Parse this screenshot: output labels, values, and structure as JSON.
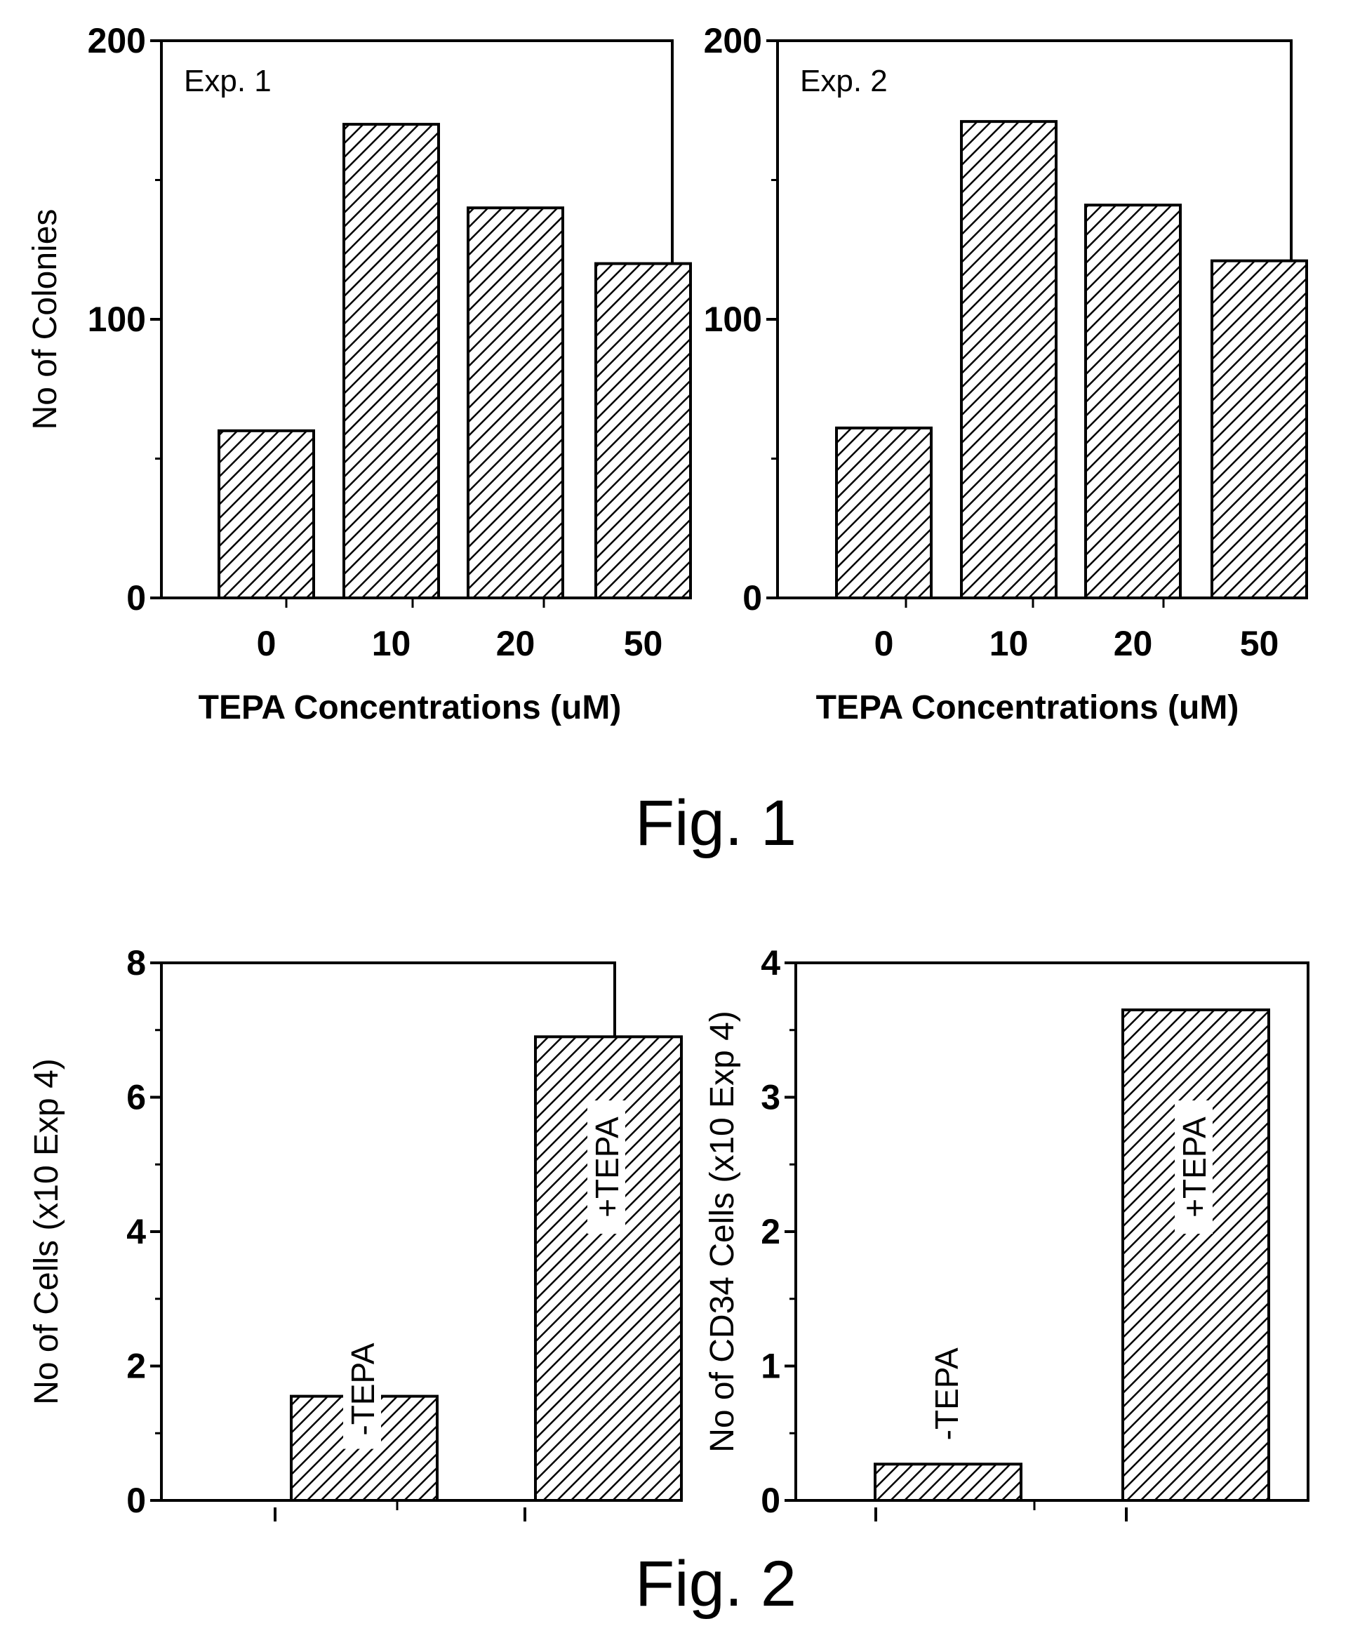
{
  "figures": [
    {
      "caption": "Fig. 1"
    },
    {
      "caption": "Fig. 2"
    }
  ],
  "chart_data": [
    {
      "type": "bar",
      "panel_label": "Exp. 1",
      "categories": [
        "0",
        "10",
        "20",
        "50"
      ],
      "values": [
        60,
        170,
        140,
        120
      ],
      "xlabel": "TEPA Concentrations (uM)",
      "ylabel": "No of Colonies",
      "ylim": [
        0,
        200
      ],
      "yticks": [
        "0",
        "100",
        "200"
      ],
      "bar_fill": "diagonal-hatch",
      "color": "#000000"
    },
    {
      "type": "bar",
      "panel_label": "Exp. 2",
      "categories": [
        "0",
        "10",
        "20",
        "50"
      ],
      "values": [
        61,
        171,
        141,
        121
      ],
      "xlabel": "TEPA Concentrations (uM)",
      "ylabel": "",
      "ylim": [
        0,
        200
      ],
      "yticks": [
        "0",
        "100",
        "200"
      ],
      "bar_fill": "diagonal-hatch",
      "color": "#000000"
    },
    {
      "type": "bar",
      "categories": [
        "-TEPA",
        "+TEPA"
      ],
      "values": [
        1.55,
        6.9
      ],
      "xlabel": "",
      "ylabel": "No of Cells (x10 Exp 4)",
      "ylim": [
        0,
        8
      ],
      "yticks": [
        "0",
        "2",
        "4",
        "6",
        "8"
      ],
      "bar_fill": "diagonal-hatch",
      "color": "#000000"
    },
    {
      "type": "bar",
      "categories": [
        "-TEPA",
        "+TEPA"
      ],
      "values": [
        0.27,
        3.65
      ],
      "xlabel": "",
      "ylabel": "No of CD34 Cells (x10 Exp 4)",
      "ylim": [
        0,
        4
      ],
      "yticks": [
        "0",
        "1",
        "2",
        "3",
        "4"
      ],
      "bar_fill": "diagonal-hatch",
      "color": "#000000"
    }
  ]
}
